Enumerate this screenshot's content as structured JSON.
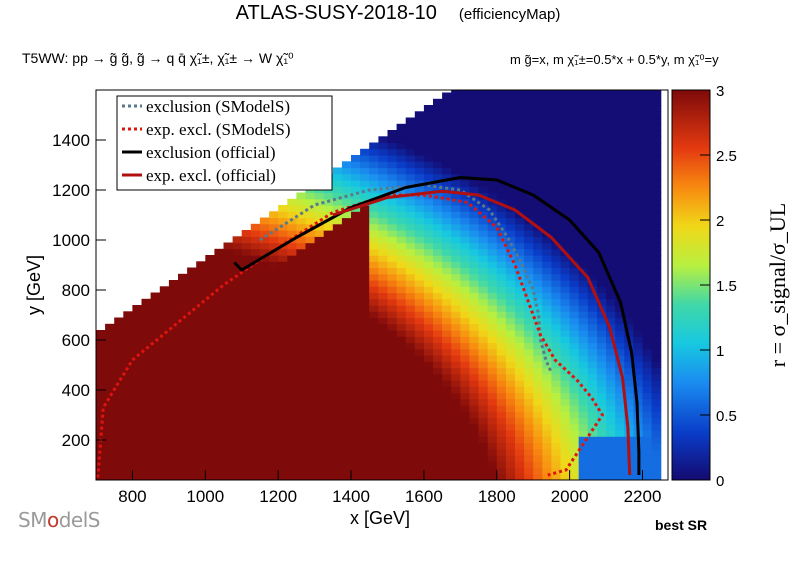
{
  "header": {
    "title": "ATLAS-SUSY-2018-10",
    "subtitle": "(efficiencyMap)",
    "process": "T5WW: pp → g̃ g̃, g̃ → q q̄ χ̃₁±, χ̃₁± → W χ̃₁⁰",
    "masses": "m g̃=x, m χ̃₁±=0.5*x + 0.5*y, m χ̃₁⁰=y",
    "best_sr": "best SR",
    "logo": "SModelS"
  },
  "chart_data": {
    "type": "heatmap",
    "xlabel": "x [GeV]",
    "ylabel": "y [GeV]",
    "zlabel": "r = σ_signal/σ_UL",
    "xlim": [
      700,
      2270
    ],
    "ylim": [
      40,
      1600
    ],
    "zlim": [
      0,
      3
    ],
    "x_ticks": [
      800,
      1000,
      1200,
      1400,
      1600,
      1800,
      2000,
      2200
    ],
    "y_ticks": [
      200,
      400,
      600,
      800,
      1000,
      1200,
      1400
    ],
    "z_ticks": [
      0,
      0.5,
      1,
      1.5,
      2,
      2.5,
      3
    ],
    "legend": {
      "placement": "top-left",
      "entries": [
        {
          "label": "exclusion (SModelS)",
          "color": "#5a7a8c",
          "style": "dotted"
        },
        {
          "label": "exp. excl. (SModelS)",
          "color": "#e0140f",
          "style": "dotted"
        },
        {
          "label": "exclusion (official)",
          "color": "#000000",
          "style": "solid"
        },
        {
          "label": "exp. excl. (official)",
          "color": "#b01010",
          "style": "solid"
        }
      ]
    },
    "curves": {
      "exclusion_smodels": [
        [
          1150,
          1000
        ],
        [
          1300,
          1140
        ],
        [
          1450,
          1200
        ],
        [
          1600,
          1220
        ],
        [
          1700,
          1200
        ],
        [
          1780,
          1120
        ],
        [
          1830,
          1010
        ],
        [
          1870,
          900
        ],
        [
          1900,
          800
        ],
        [
          1915,
          700
        ],
        [
          1920,
          600
        ],
        [
          1935,
          520
        ],
        [
          1950,
          470
        ]
      ],
      "exp_excl_smodels": [
        [
          705,
          50
        ],
        [
          720,
          330
        ],
        [
          800,
          520
        ],
        [
          900,
          640
        ],
        [
          1050,
          820
        ],
        [
          1200,
          970
        ],
        [
          1350,
          1110
        ],
        [
          1500,
          1180
        ],
        [
          1600,
          1180
        ],
        [
          1720,
          1150
        ],
        [
          1800,
          1050
        ],
        [
          1850,
          900
        ],
        [
          1880,
          780
        ],
        [
          1920,
          620
        ],
        [
          1960,
          520
        ],
        [
          2020,
          440
        ],
        [
          2060,
          370
        ],
        [
          2090,
          300
        ],
        [
          1990,
          80
        ],
        [
          1940,
          60
        ]
      ],
      "exclusion_official": [
        [
          1080,
          910
        ],
        [
          1100,
          880
        ],
        [
          1250,
          1010
        ],
        [
          1400,
          1130
        ],
        [
          1550,
          1210
        ],
        [
          1700,
          1250
        ],
        [
          1800,
          1240
        ],
        [
          1900,
          1180
        ],
        [
          2000,
          1080
        ],
        [
          2080,
          950
        ],
        [
          2140,
          750
        ],
        [
          2170,
          550
        ],
        [
          2185,
          350
        ],
        [
          2190,
          150
        ],
        [
          2190,
          60
        ]
      ],
      "exp_excl_official": [
        [
          1350,
          1100
        ],
        [
          1500,
          1170
        ],
        [
          1650,
          1195
        ],
        [
          1750,
          1180
        ],
        [
          1850,
          1120
        ],
        [
          1950,
          1010
        ],
        [
          2050,
          850
        ],
        [
          2110,
          650
        ],
        [
          2145,
          450
        ],
        [
          2160,
          250
        ],
        [
          2165,
          60
        ]
      ]
    }
  }
}
